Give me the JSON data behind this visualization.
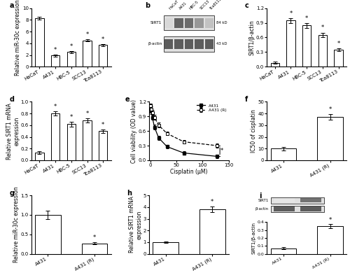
{
  "panel_a": {
    "categories": [
      "HaCaT",
      "A431",
      "HBC-5",
      "SCC13",
      "Tca8113"
    ],
    "values": [
      8.3,
      1.9,
      2.5,
      4.5,
      3.7
    ],
    "errors": [
      0.25,
      0.15,
      0.2,
      0.2,
      0.2
    ],
    "ylabel": "Relative miR-30c expression",
    "ylim": [
      0,
      10
    ],
    "yticks": [
      0,
      2,
      4,
      6,
      8,
      10
    ],
    "label": "a",
    "stars": [
      1,
      2,
      3,
      4
    ]
  },
  "panel_b": {
    "label": "b",
    "sirt1_label": "SIRT1",
    "actin_label": "β-actin",
    "sirt1_kd": "84 kD",
    "actin_kd": "43 kD",
    "lanes": [
      "HaCaT",
      "A431",
      "HBC-5",
      "SCC13",
      "Tca8113"
    ],
    "sirt1_intensities": [
      0.18,
      0.72,
      0.68,
      0.48,
      0.28
    ],
    "actin_intensities": [
      0.75,
      0.75,
      0.75,
      0.75,
      0.75
    ]
  },
  "panel_c": {
    "categories": [
      "HaCaT",
      "A431",
      "HBC-5",
      "SCC13",
      "Tca8113"
    ],
    "values": [
      0.08,
      0.95,
      0.85,
      0.65,
      0.35
    ],
    "errors": [
      0.02,
      0.05,
      0.05,
      0.05,
      0.03
    ],
    "ylabel": "SIRT1/β-actin",
    "ylim": [
      0,
      1.2
    ],
    "yticks": [
      0.0,
      0.3,
      0.6,
      0.9,
      1.2
    ],
    "label": "c",
    "stars": [
      1,
      2,
      3,
      4
    ]
  },
  "panel_d": {
    "categories": [
      "HaCaT",
      "A431",
      "HBC-5",
      "SCC13",
      "Tca8113"
    ],
    "values": [
      0.13,
      0.8,
      0.62,
      0.68,
      0.5
    ],
    "errors": [
      0.02,
      0.04,
      0.04,
      0.04,
      0.03
    ],
    "ylabel": "Relative SIRT1 mRNA\nexpression",
    "ylim": [
      0,
      1.0
    ],
    "yticks": [
      0.0,
      0.2,
      0.4,
      0.6,
      0.8,
      1.0
    ],
    "label": "d",
    "stars": [
      1,
      2,
      3,
      4
    ]
  },
  "panel_e": {
    "x": [
      0,
      2,
      4,
      8,
      16,
      32,
      64,
      128
    ],
    "y_a431": [
      1.12,
      1.0,
      0.88,
      0.68,
      0.46,
      0.28,
      0.15,
      0.08
    ],
    "y_a431r": [
      1.12,
      1.05,
      0.98,
      0.88,
      0.72,
      0.55,
      0.38,
      0.3
    ],
    "err_a431": [
      0.05,
      0.05,
      0.05,
      0.05,
      0.04,
      0.04,
      0.03,
      0.03
    ],
    "err_a431r": [
      0.05,
      0.05,
      0.05,
      0.05,
      0.05,
      0.04,
      0.04,
      0.04
    ],
    "xlabel": "Cisplatin (μM)",
    "ylabel": "Cell viability (OD value)",
    "ylim": [
      0,
      1.2
    ],
    "yticks": [
      0.0,
      0.3,
      0.6,
      0.9,
      1.2
    ],
    "xlim": [
      -2,
      150
    ],
    "xticks": [
      0,
      50,
      100,
      150
    ],
    "label": "e",
    "legend": [
      "A431",
      "A431 (R)"
    ]
  },
  "panel_f": {
    "categories": [
      "A431",
      "A431 (R)"
    ],
    "values": [
      10,
      37
    ],
    "errors": [
      1.5,
      2.5
    ],
    "ylabel": "IC50 of cisplatin",
    "ylim": [
      0,
      50
    ],
    "yticks": [
      0,
      10,
      20,
      30,
      40,
      50
    ],
    "label": "f",
    "stars": [
      1
    ]
  },
  "panel_g": {
    "categories": [
      "A431",
      "A431 (R)"
    ],
    "values": [
      1.0,
      0.27
    ],
    "errors": [
      0.1,
      0.03
    ],
    "ylabel": "Relative miR-30c expression",
    "ylim": [
      0,
      1.5
    ],
    "yticks": [
      0.0,
      0.5,
      1.0,
      1.5
    ],
    "label": "g",
    "stars": [
      1
    ]
  },
  "panel_h": {
    "categories": [
      "A431",
      "A431 (R)"
    ],
    "values": [
      1.0,
      3.8
    ],
    "errors": [
      0.08,
      0.25
    ],
    "ylabel": "Relative SIRT1 mRNA\nexpression",
    "ylim": [
      0,
      5
    ],
    "yticks": [
      0,
      1,
      2,
      3,
      4,
      5
    ],
    "label": "h",
    "stars": [
      1
    ]
  },
  "panel_i": {
    "categories": [
      "A431",
      "A431 (R)"
    ],
    "values": [
      0.07,
      0.35
    ],
    "errors": [
      0.015,
      0.025
    ],
    "ylabel": "SIRT1/β-actin",
    "ylim": [
      0,
      0.4
    ],
    "yticks": [
      0.0,
      0.1,
      0.2,
      0.3,
      0.4
    ],
    "label": "i",
    "stars": [
      1
    ],
    "sirt1_label": "SIRT1",
    "actin_label": "β-actin",
    "sirt1_intensities": [
      0.12,
      0.65
    ],
    "actin_intensities": [
      0.75,
      0.75
    ]
  },
  "bar_color": "white",
  "bar_edgecolor": "black",
  "font_size": 5.5,
  "tick_font_size": 5.0,
  "label_fontsize": 7
}
